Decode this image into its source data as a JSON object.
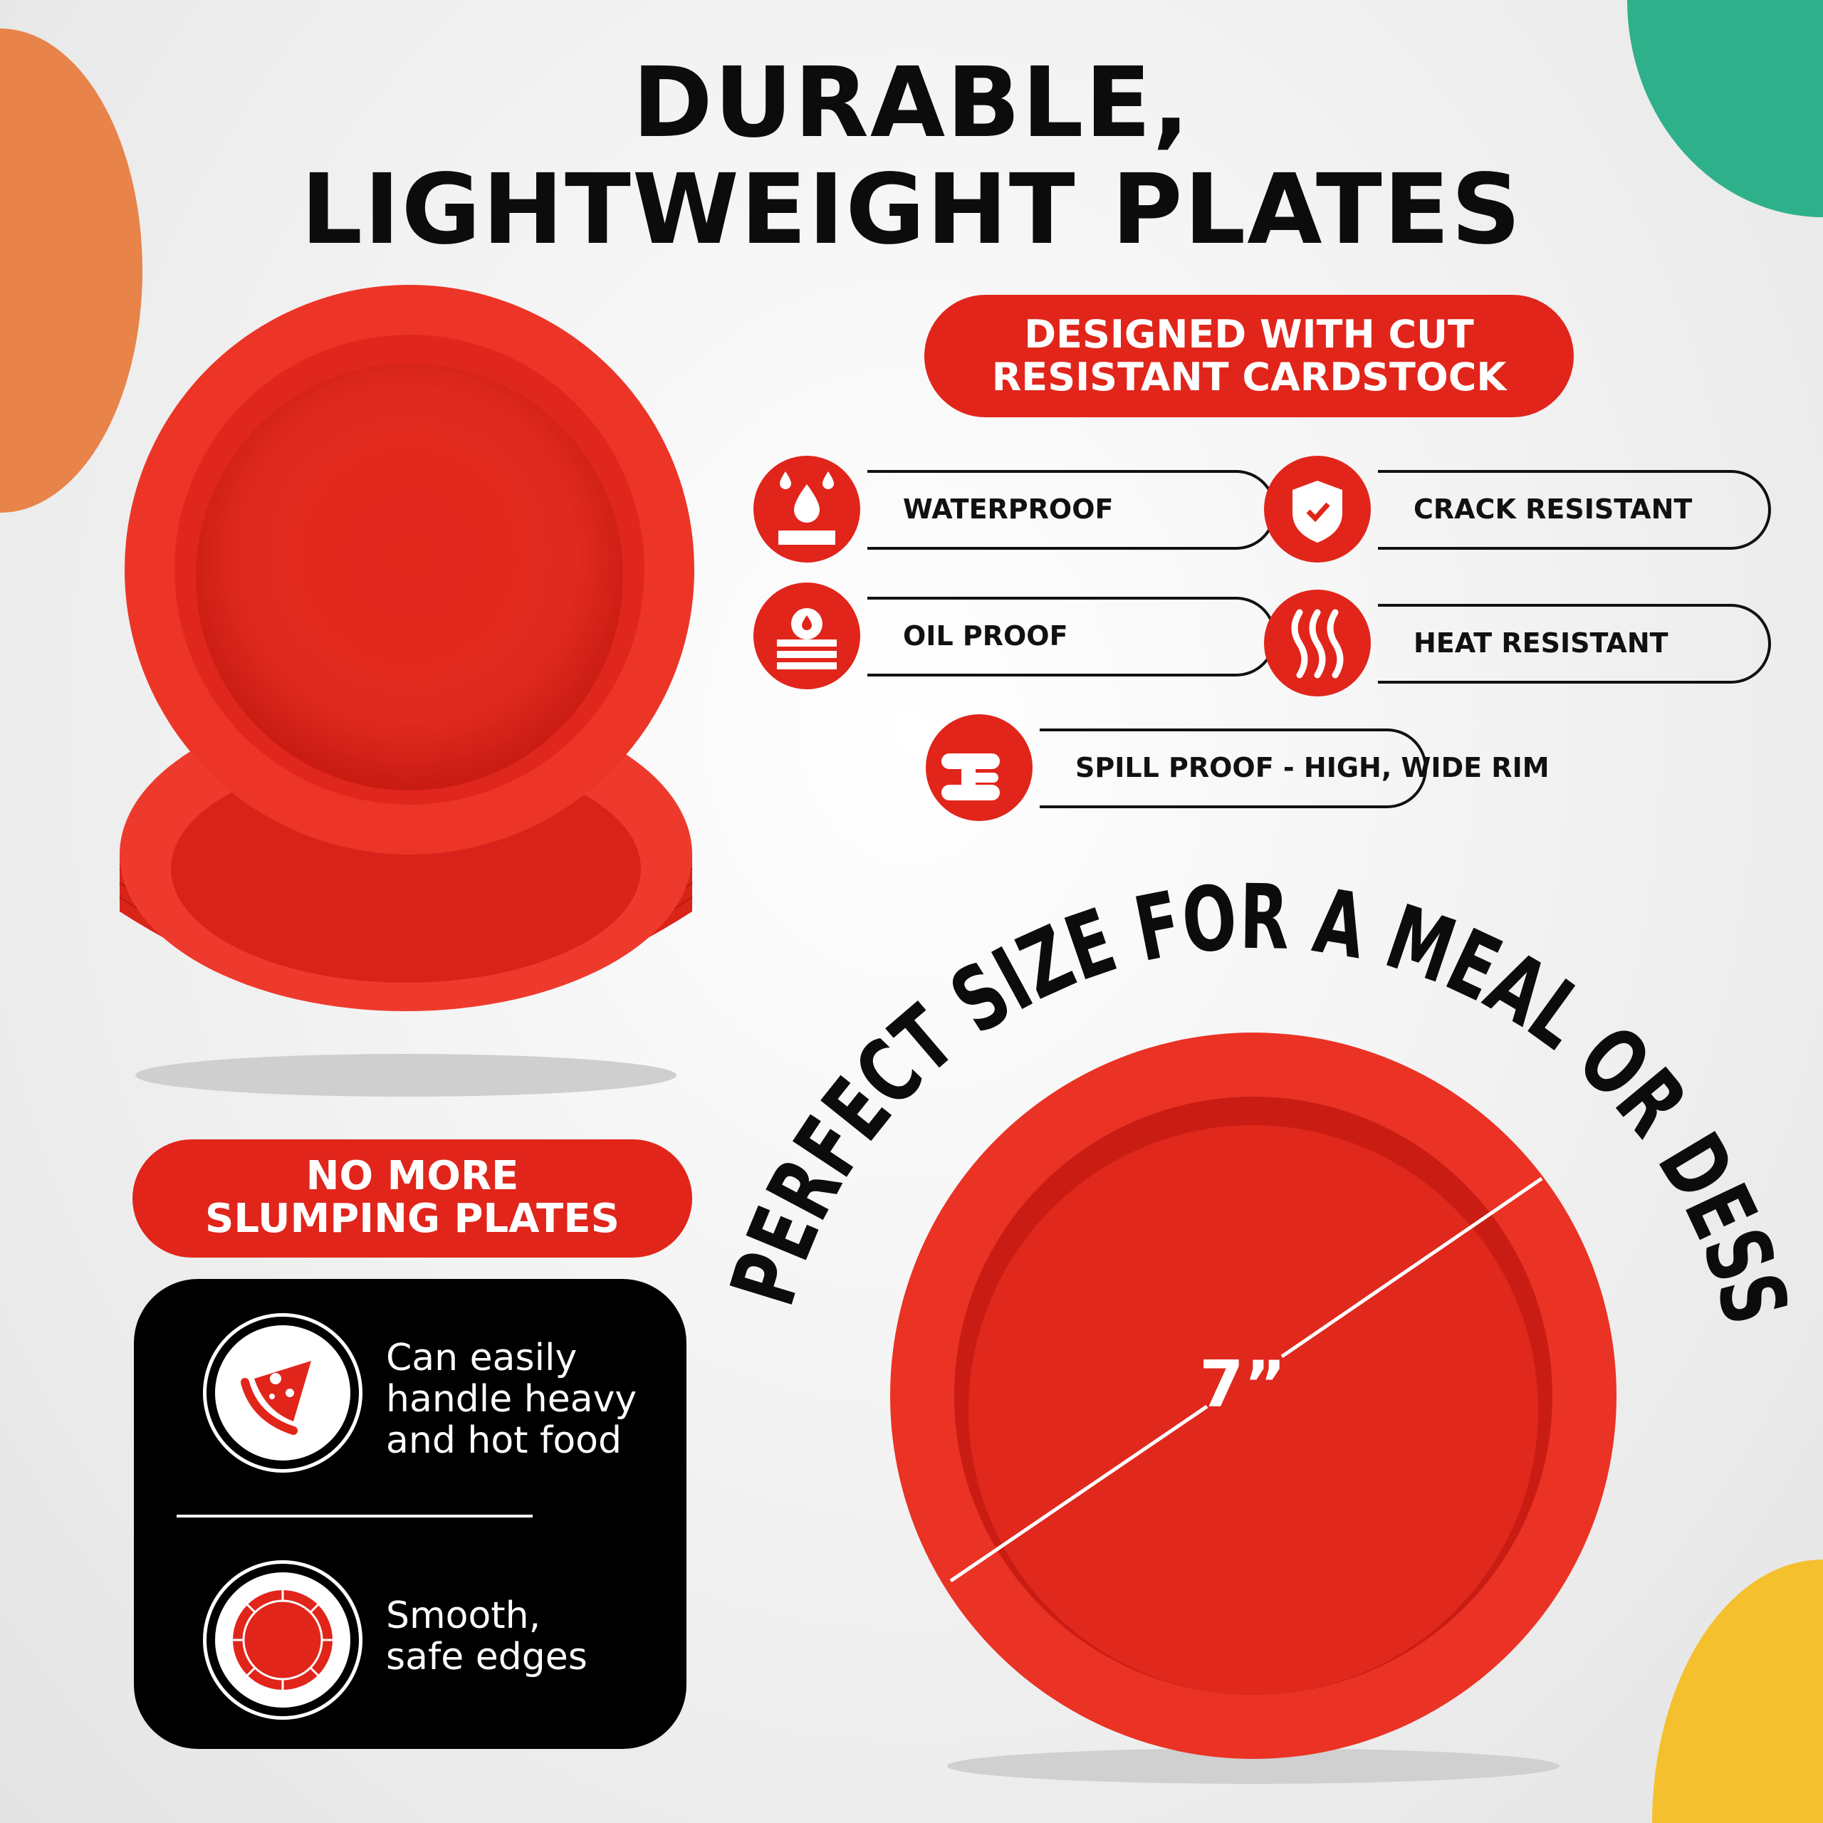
{
  "headline": {
    "line1": "DURABLE,",
    "line2": "LIGHTWEIGHT PLATES"
  },
  "badge_top": {
    "line1": "DESIGNED WITH CUT",
    "line2": "RESISTANT CARDSTOCK"
  },
  "features": [
    {
      "label": "WATERPROOF",
      "icon": "water-drop-icon"
    },
    {
      "label": "CRACK RESISTANT",
      "icon": "shield-check-icon"
    },
    {
      "label": "OIL PROOF",
      "icon": "oil-drop-layers-icon"
    },
    {
      "label": "HEAT RESISTANT",
      "icon": "heat-waves-icon"
    },
    {
      "label": "SPILL PROOF - HIGH, WIDE RIM",
      "icon": "rim-profile-icon"
    }
  ],
  "badge_bottom": {
    "line1": "NO MORE",
    "line2": "SLUMPING PLATES"
  },
  "benefits": [
    {
      "text_lines": [
        "Can easily",
        "handle heavy",
        "and hot food"
      ],
      "icon": "pizza-slice-icon"
    },
    {
      "text_lines": [
        "Smooth,",
        "safe edges"
      ],
      "icon": "plate-edge-icon"
    }
  ],
  "arc_text": "PERFECT SIZE FOR A MEAL OR DESSERT",
  "diameter_label": "7”",
  "colors": {
    "red": "#e1251b",
    "orange": "#e8834a",
    "teal": "#2eb08a",
    "yellow": "#f5c02e",
    "black": "#000000"
  }
}
